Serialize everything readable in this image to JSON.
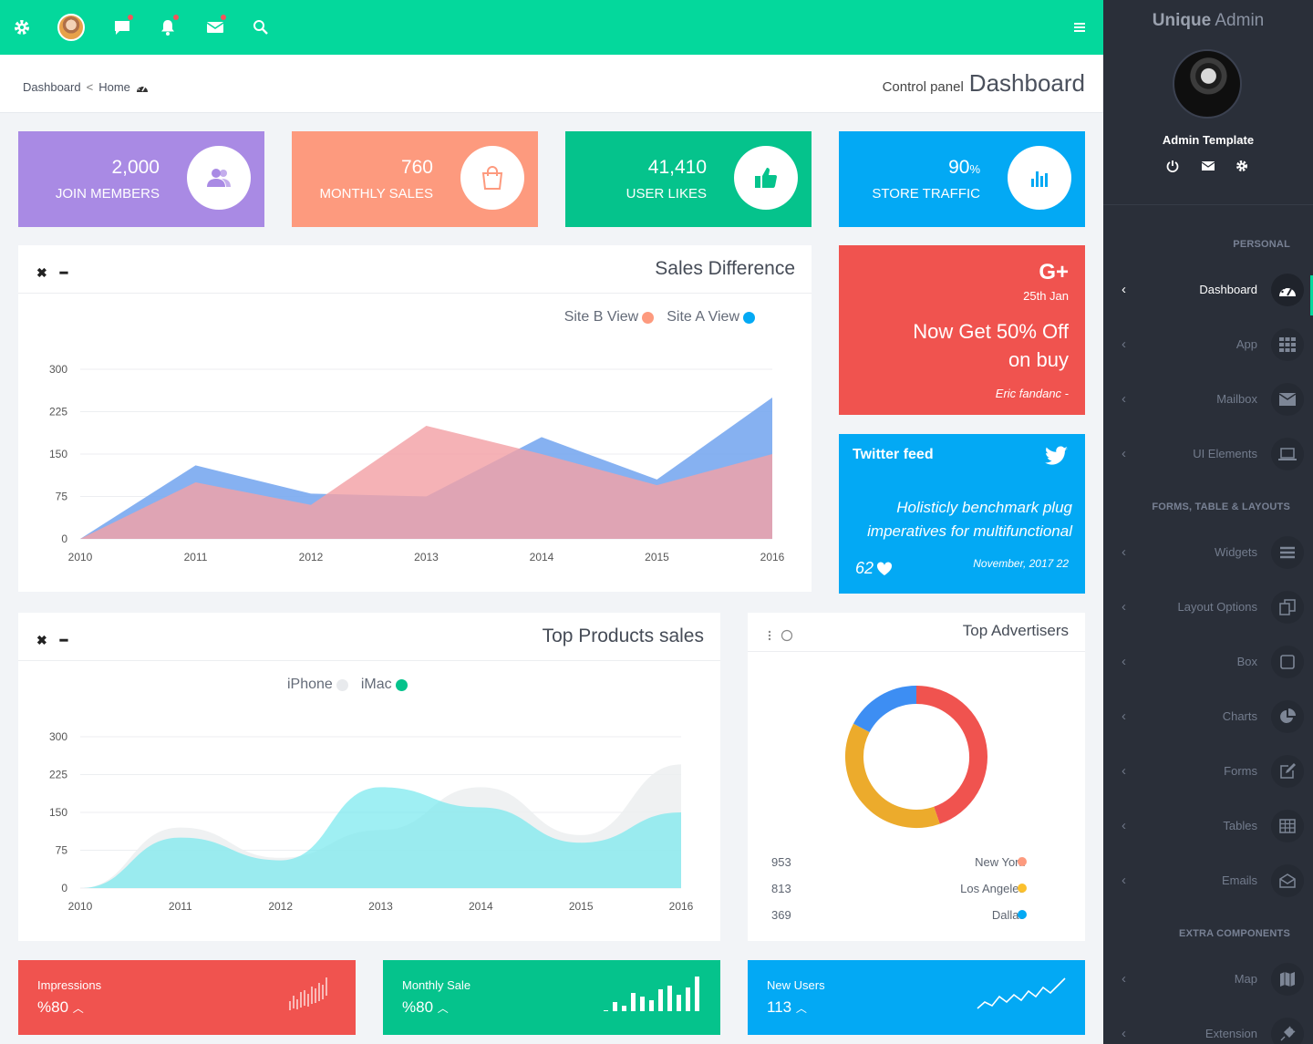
{
  "breadcrumb": {
    "current": "Dashboard",
    "separator": "<",
    "home": "Home"
  },
  "page_title": {
    "subtitle": "Control panel",
    "title": "Dashboard"
  },
  "stats": [
    {
      "value": "2,000",
      "label": "JOIN MEMBERS",
      "color": "#a98ae4",
      "icon": "users-icon",
      "icon_color": "#a98ae4"
    },
    {
      "value": "760",
      "label": "MONTHLY SALES",
      "color": "#fd9a7e",
      "icon": "shopping-bag-icon",
      "icon_color": "#fd9a7e"
    },
    {
      "value": "41,410",
      "label": "USER LIKES",
      "color": "#05c38c",
      "icon": "thumbs-up-icon",
      "icon_color": "#05c38c"
    },
    {
      "value": "90",
      "unit": "%",
      "label": "STORE TRAFFIC",
      "color": "#03a9f4",
      "icon": "bar-chart-icon",
      "icon_color": "#03a9f4"
    }
  ],
  "sales_difference": {
    "title": "Sales Difference",
    "chart_data": {
      "type": "area",
      "x": [
        "2010",
        "2011",
        "2012",
        "2013",
        "2014",
        "2015",
        "2016"
      ],
      "ylim": [
        0,
        300
      ],
      "yticks": [
        0,
        75,
        150,
        225,
        300
      ],
      "series": [
        {
          "name": "Site B View",
          "color": "#f4918a",
          "values": [
            0,
            100,
            60,
            200,
            150,
            95,
            150
          ]
        },
        {
          "name": "Site A View",
          "color": "#7fadf2",
          "values": [
            0,
            130,
            80,
            75,
            180,
            105,
            250
          ]
        }
      ]
    }
  },
  "promo": {
    "brand": "G+",
    "date": "25th Jan",
    "headline_line1": "Now Get 50% Off",
    "headline_line2": "on buy",
    "author": "Eric fandanc -"
  },
  "twitter": {
    "title": "Twitter feed",
    "text_line1": "Holisticly benchmark plug",
    "text_line2": "imperatives for multifunctional",
    "likes": "62",
    "date": "November, 2017 22"
  },
  "top_products": {
    "title": "Top Products sales",
    "chart_data": {
      "type": "area",
      "x": [
        "2010",
        "2011",
        "2012",
        "2013",
        "2014",
        "2015",
        "2016"
      ],
      "ylim": [
        0,
        300
      ],
      "yticks": [
        0,
        75,
        150,
        225,
        300
      ],
      "series": [
        {
          "name": "iPhone",
          "color": "#e8eaed",
          "values": [
            0,
            120,
            60,
            115,
            200,
            105,
            245
          ]
        },
        {
          "name": "iMac",
          "color": "#05c38c",
          "values": [
            0,
            100,
            55,
            200,
            160,
            90,
            150
          ]
        }
      ]
    }
  },
  "top_advertisers": {
    "title": "Top Advertisers",
    "chart_data": {
      "type": "pie",
      "labels": [
        "New York",
        "Los Angeles",
        "Dallas"
      ],
      "values": [
        953,
        813,
        369
      ],
      "colors": [
        "#f0534f",
        "#ecab2c",
        "#3d8ef3"
      ]
    },
    "rows": [
      {
        "value": "953",
        "city": "New York",
        "color": "#fd9a7e"
      },
      {
        "value": "813",
        "city": "Los Angeles",
        "color": "#fbc02d"
      },
      {
        "value": "369",
        "city": "Dallas",
        "color": "#03a9f4"
      }
    ]
  },
  "bottom_cards": [
    {
      "title": "Impressions",
      "value": "%80",
      "color": "#f0534f"
    },
    {
      "title": "Monthly Sale",
      "value": "%80",
      "color": "#05c38c"
    },
    {
      "title": "New Users",
      "value": "113",
      "color": "#03a9f4"
    }
  ],
  "sidebar": {
    "brand_bold": "Unique",
    "brand_rest": " Admin",
    "profile_name": "Admin Template",
    "sections": [
      {
        "label": "PERSONAL"
      },
      {
        "label": "FORMS, TABLE & LAYOUTS"
      },
      {
        "label": "EXTRA COMPONENTS"
      }
    ],
    "items": [
      {
        "label": "Dashboard",
        "icon": "dashboard-gauge-icon",
        "active": true
      },
      {
        "label": "App",
        "icon": "grid-icon"
      },
      {
        "label": "Mailbox",
        "icon": "envelope-icon"
      },
      {
        "label": "UI Elements",
        "icon": "laptop-icon"
      },
      {
        "label": "Widgets",
        "icon": "bars-icon"
      },
      {
        "label": "Layout Options",
        "icon": "copy-icon"
      },
      {
        "label": "Box",
        "icon": "square-icon"
      },
      {
        "label": "Charts",
        "icon": "pie-chart-icon"
      },
      {
        "label": "Forms",
        "icon": "edit-icon"
      },
      {
        "label": "Tables",
        "icon": "table-icon"
      },
      {
        "label": "Emails",
        "icon": "envelope-open-icon"
      },
      {
        "label": "Map",
        "icon": "map-icon"
      },
      {
        "label": "Extension",
        "icon": "plug-icon"
      }
    ]
  }
}
